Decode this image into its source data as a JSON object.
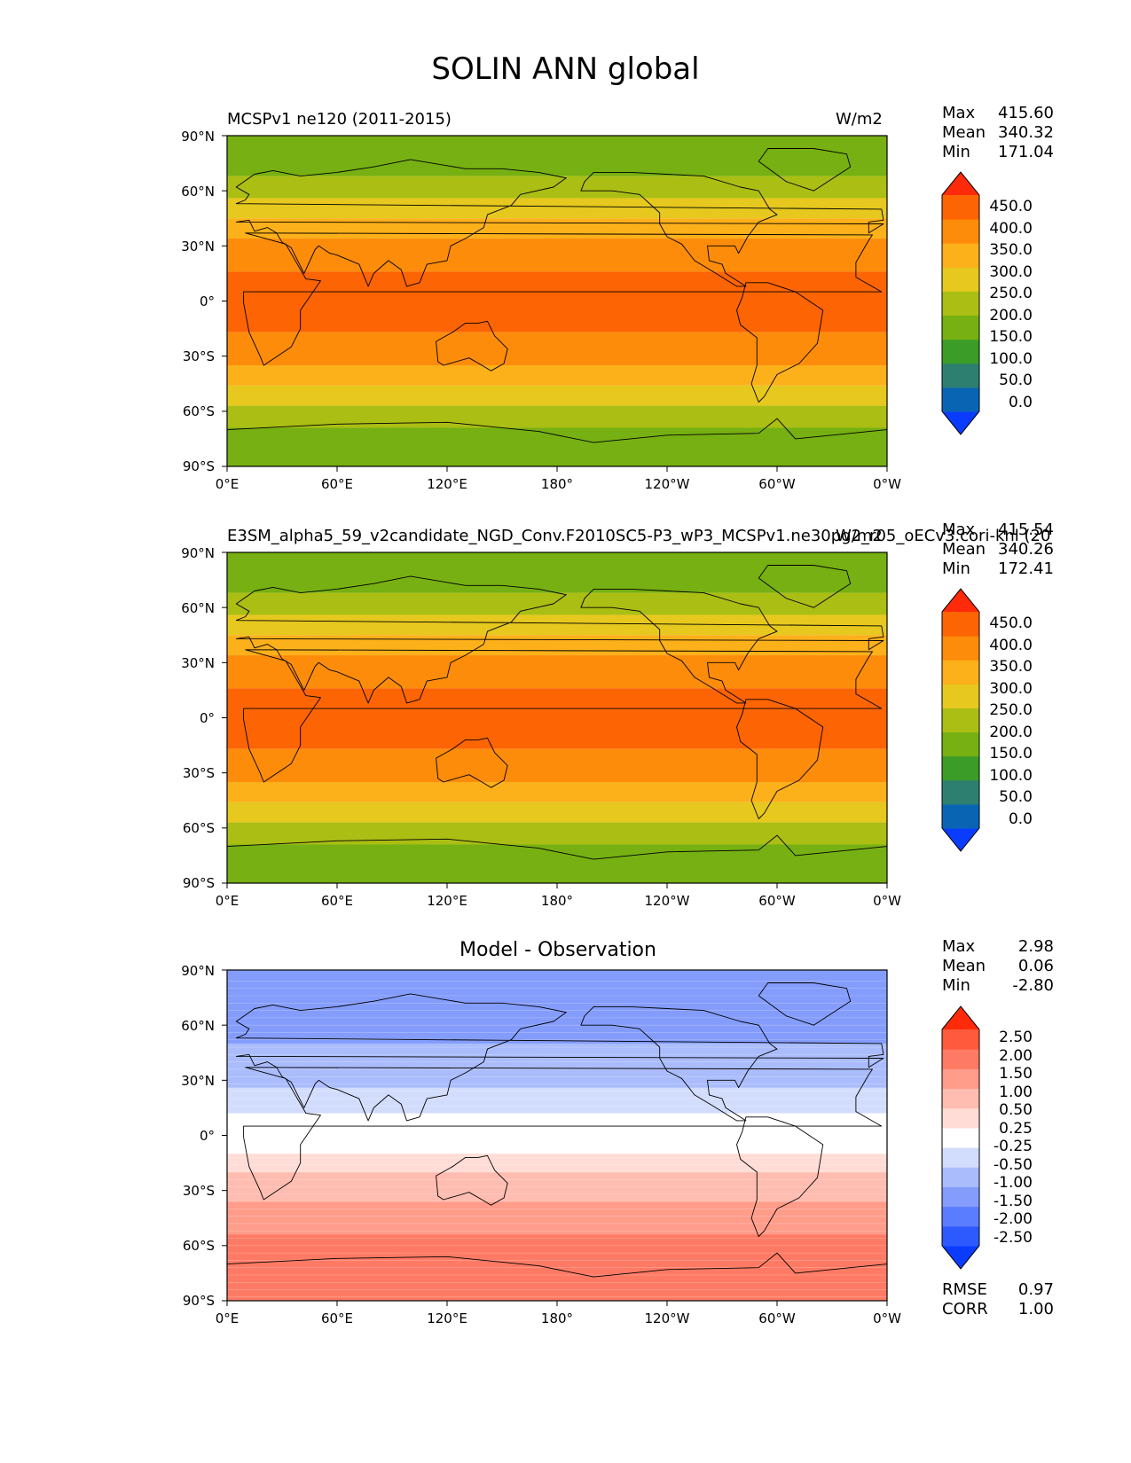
{
  "figure": {
    "title": "SOLIN ANN global"
  },
  "chart_data": [
    {
      "type": "heatmap",
      "panel": "test",
      "title_left": "MCSPv1 ne120 (2011-2015)",
      "title_right": "W/m2",
      "stats": {
        "max": "415.60",
        "mean": "340.32",
        "min": "171.04"
      },
      "x_ticks": [
        "0°E",
        "60°E",
        "120°E",
        "180°",
        "120°W",
        "60°W",
        "0°W"
      ],
      "y_ticks": [
        "90°N",
        "60°N",
        "30°N",
        "0°",
        "30°S",
        "60°S",
        "90°S"
      ],
      "xlim": [
        0,
        360
      ],
      "ylim": [
        -90,
        90
      ],
      "colorbar": {
        "levels": [
          "450.0",
          "400.0",
          "350.0",
          "300.0",
          "250.0",
          "200.0",
          "150.0",
          "100.0",
          "50.0",
          "0.0"
        ],
        "colors": [
          "#0a3cff",
          "#0a64b4",
          "#2d8070",
          "#3c9c28",
          "#76b012",
          "#aabe14",
          "#e6c81e",
          "#fcb01a",
          "#fc8c0a",
          "#fc6404",
          "#ff2a0a"
        ]
      },
      "zonal_bands": [
        {
          "lat_top": 90,
          "lat_bottom": 68,
          "color": "#76b012"
        },
        {
          "lat_top": 68,
          "lat_bottom": 56,
          "color": "#aabe14"
        },
        {
          "lat_top": 56,
          "lat_bottom": 45,
          "color": "#e6c81e"
        },
        {
          "lat_top": 45,
          "lat_bottom": 34,
          "color": "#fcb01a"
        },
        {
          "lat_top": 34,
          "lat_bottom": 16,
          "color": "#fc8c0a"
        },
        {
          "lat_top": 16,
          "lat_bottom": -17,
          "color": "#fc6404"
        },
        {
          "lat_top": -17,
          "lat_bottom": -35,
          "color": "#fc8c0a"
        },
        {
          "lat_top": -35,
          "lat_bottom": -46,
          "color": "#fcb01a"
        },
        {
          "lat_top": -46,
          "lat_bottom": -57,
          "color": "#e6c81e"
        },
        {
          "lat_top": -57,
          "lat_bottom": -69,
          "color": "#aabe14"
        },
        {
          "lat_top": -69,
          "lat_bottom": -90,
          "color": "#76b012"
        }
      ]
    },
    {
      "type": "heatmap",
      "panel": "reference",
      "title_left": "E3SM_alpha5_59_v2candidate_NGD_Conv.F2010SC5-P3_wP3_MCSPv1.ne30pg2_r05_oECv3.cori-knl (20",
      "title_right": "W/m2",
      "stats": {
        "max": "415.54",
        "mean": "340.26",
        "min": "172.41"
      },
      "x_ticks": [
        "0°E",
        "60°E",
        "120°E",
        "180°",
        "120°W",
        "60°W",
        "0°W"
      ],
      "y_ticks": [
        "90°N",
        "60°N",
        "30°N",
        "0°",
        "30°S",
        "60°S",
        "90°S"
      ],
      "xlim": [
        0,
        360
      ],
      "ylim": [
        -90,
        90
      ],
      "colorbar": {
        "levels": [
          "450.0",
          "400.0",
          "350.0",
          "300.0",
          "250.0",
          "200.0",
          "150.0",
          "100.0",
          "50.0",
          "0.0"
        ],
        "colors": [
          "#0a3cff",
          "#0a64b4",
          "#2d8070",
          "#3c9c28",
          "#76b012",
          "#aabe14",
          "#e6c81e",
          "#fcb01a",
          "#fc8c0a",
          "#fc6404",
          "#ff2a0a"
        ]
      },
      "zonal_bands": [
        {
          "lat_top": 90,
          "lat_bottom": 68,
          "color": "#76b012"
        },
        {
          "lat_top": 68,
          "lat_bottom": 56,
          "color": "#aabe14"
        },
        {
          "lat_top": 56,
          "lat_bottom": 45,
          "color": "#e6c81e"
        },
        {
          "lat_top": 45,
          "lat_bottom": 34,
          "color": "#fcb01a"
        },
        {
          "lat_top": 34,
          "lat_bottom": 16,
          "color": "#fc8c0a"
        },
        {
          "lat_top": 16,
          "lat_bottom": -17,
          "color": "#fc6404"
        },
        {
          "lat_top": -17,
          "lat_bottom": -35,
          "color": "#fc8c0a"
        },
        {
          "lat_top": -35,
          "lat_bottom": -46,
          "color": "#fcb01a"
        },
        {
          "lat_top": -46,
          "lat_bottom": -57,
          "color": "#e6c81e"
        },
        {
          "lat_top": -57,
          "lat_bottom": -69,
          "color": "#aabe14"
        },
        {
          "lat_top": -69,
          "lat_bottom": -90,
          "color": "#76b012"
        }
      ]
    },
    {
      "type": "heatmap",
      "panel": "difference",
      "title_center": "Model - Observation",
      "stats": {
        "max": "2.98",
        "mean": "0.06",
        "min": "-2.80"
      },
      "metrics": {
        "rmse_label": "RMSE",
        "rmse": "0.97",
        "corr_label": "CORR",
        "corr": "1.00"
      },
      "x_ticks": [
        "0°E",
        "60°E",
        "120°E",
        "180°",
        "120°W",
        "60°W",
        "0°W"
      ],
      "y_ticks": [
        "90°N",
        "60°N",
        "30°N",
        "0°",
        "30°S",
        "60°S",
        "90°S"
      ],
      "xlim": [
        0,
        360
      ],
      "ylim": [
        -90,
        90
      ],
      "colorbar": {
        "levels": [
          "2.50",
          "2.00",
          "1.50",
          "1.00",
          "0.50",
          "0.25",
          "-0.25",
          "-0.50",
          "-1.00",
          "-1.50",
          "-2.00",
          "-2.50"
        ],
        "colors": [
          "#0a3cff",
          "#2d5aff",
          "#5a7cff",
          "#849cfc",
          "#aabcfc",
          "#d2dcfc",
          "#ffffff",
          "#ffdcd6",
          "#ffbcb0",
          "#ff9c8a",
          "#ff7a64",
          "#ff5a3c",
          "#ff2a0a"
        ]
      },
      "zonal_profile": [
        {
          "lat": 90,
          "value": -1.5
        },
        {
          "lat": 60,
          "value": -1.2
        },
        {
          "lat": 30,
          "value": -0.6
        },
        {
          "lat": 8,
          "value": -0.15
        },
        {
          "lat": -5,
          "value": 0.1
        },
        {
          "lat": -20,
          "value": 0.5
        },
        {
          "lat": -45,
          "value": 1.3
        },
        {
          "lat": -70,
          "value": 1.9
        },
        {
          "lat": -90,
          "value": 1.8
        }
      ]
    }
  ]
}
